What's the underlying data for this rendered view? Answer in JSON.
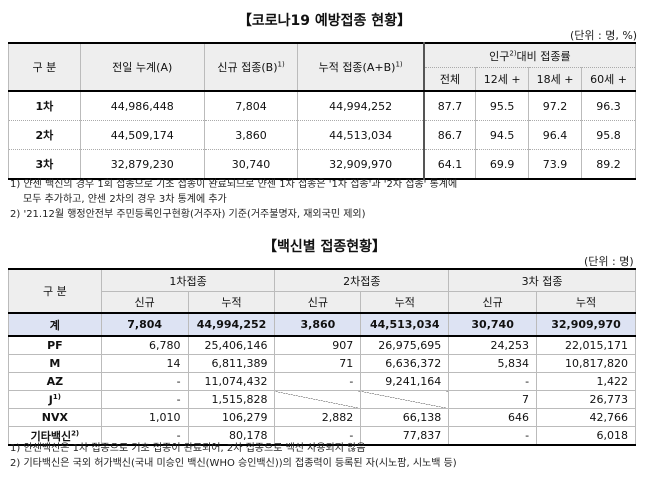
{
  "table1": {
    "title": "【코로나19 예방접종 현황】",
    "unit": "(단위 : 명, %)",
    "headers": {
      "category": "구 분",
      "prev_total": "전일 누계(A)",
      "new": "신규 접종(B)",
      "new_sup": "1)",
      "cumulative": "누적 접종(A+B)",
      "cumulative_sup": "1)",
      "rate_group_pre": "인구",
      "rate_group_sup": "2)",
      "rate_group_post": "대비 접종률",
      "all": "전체",
      "age12": "12세 +",
      "age18": "18세 +",
      "age60": "60세 +"
    },
    "rows": [
      {
        "label": "1차",
        "prev_total": "44,986,448",
        "new": "7,804",
        "cumulative": "44,994,252",
        "all": "87.7",
        "age12": "95.5",
        "age18": "97.2",
        "age60": "96.3"
      },
      {
        "label": "2차",
        "prev_total": "44,509,174",
        "new": "3,860",
        "cumulative": "44,513,034",
        "all": "86.7",
        "age12": "94.5",
        "age18": "96.4",
        "age60": "95.8"
      },
      {
        "label": "3차",
        "prev_total": "32,879,230",
        "new": "30,740",
        "cumulative": "32,909,970",
        "all": "64.1",
        "age12": "69.9",
        "age18": "73.9",
        "age60": "89.2"
      }
    ],
    "notes": [
      "1) 얀센 백신의 경우 1회 접종으로 기초 접종이 완료되므로 얀센 1차 접종은 '1차 접종'과 '2차 접종' 통계에",
      "모두 추가하고, 얀센 2차의 경우 3차 통계에 추가",
      "2) '21.12월 행정안전부 주민등록인구현황(거주자) 기준(거주불명자, 재외국민 제외)"
    ]
  },
  "table2": {
    "title": "【백신별 접종현황】",
    "unit": "(단위 : 명)",
    "headers": {
      "category": "구 분",
      "dose1": "1차접종",
      "dose2": "2차접종",
      "dose3": "3차 접종",
      "new": "신규",
      "cumulative": "누적"
    },
    "total": {
      "label": "계",
      "d1_new": "7,804",
      "d1_cum": "44,994,252",
      "d2_new": "3,860",
      "d2_cum": "44,513,034",
      "d3_new": "30,740",
      "d3_cum": "32,909,970"
    },
    "rows": [
      {
        "label": "PF",
        "sup": "",
        "d1_new": "6,780",
        "d1_cum": "25,406,146",
        "d2_new": "907",
        "d2_cum": "26,975,695",
        "d3_new": "24,253",
        "d3_cum": "22,015,171"
      },
      {
        "label": "M",
        "sup": "",
        "d1_new": "14",
        "d1_cum": "6,811,389",
        "d2_new": "71",
        "d2_cum": "6,636,372",
        "d3_new": "5,834",
        "d3_cum": "10,817,820"
      },
      {
        "label": "AZ",
        "sup": "",
        "d1_new": "-",
        "d1_cum": "11,074,432",
        "d2_new": "-",
        "d2_cum": "9,241,164",
        "d3_new": "-",
        "d3_cum": "1,422"
      },
      {
        "label": "J",
        "sup": "1)",
        "d1_new": "-",
        "d1_cum": "1,515,828",
        "d3_new": "7",
        "d3_cum": "26,773"
      },
      {
        "label": "NVX",
        "sup": "",
        "d1_new": "1,010",
        "d1_cum": "106,279",
        "d2_new": "2,882",
        "d2_cum": "66,138",
        "d3_new": "646",
        "d3_cum": "42,766"
      },
      {
        "label": "기타백신",
        "sup": "2)",
        "d1_new": "-",
        "d1_cum": "80,178",
        "d2_new": "-",
        "d2_cum": "77,837",
        "d3_new": "-",
        "d3_cum": "6,018"
      }
    ],
    "notes": [
      "1) 얀센백신은 1차 접종으로 기초 접종이 완료되어, 2차 접종으로 백신 사용되지 않음",
      "2) 기타백신은 국외 허가백신(국내 미승인 백신(WHO 승인백신))의 접종력이 등록된 자(시노팜, 시노백 등)"
    ]
  }
}
